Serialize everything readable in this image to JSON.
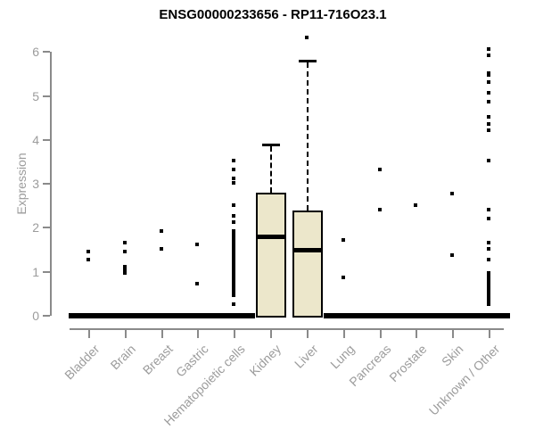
{
  "chart_data": {
    "type": "boxplot",
    "title": "ENSG00000233656 - RP11-716O23.1",
    "ylabel": "Expression",
    "xlabel": "",
    "ylim": [
      0,
      6
    ],
    "ytick_step": 1,
    "grid": false,
    "legend": "none",
    "categories": [
      "Bladder",
      "Brain",
      "Breast",
      "Gastric",
      "Hematopoietic cells",
      "Kidney",
      "Liver",
      "Lung",
      "Pancreas",
      "Prostate",
      "Skin",
      "Unknown / Other"
    ],
    "boxes": [
      {
        "category": "Bladder",
        "q1": 0,
        "median": 0,
        "q3": 0,
        "whisker_low": 0,
        "whisker_high": 0,
        "outliers": [
          1.45,
          1.25
        ]
      },
      {
        "category": "Brain",
        "q1": 0,
        "median": 0,
        "q3": 0,
        "whisker_low": 0,
        "whisker_high": 0,
        "outliers": [
          1.65,
          1.45,
          1.1,
          1.05,
          1.0,
          0.95
        ]
      },
      {
        "category": "Breast",
        "q1": 0,
        "median": 0,
        "q3": 0,
        "whisker_low": 0,
        "whisker_high": 0,
        "outliers": [
          1.9,
          1.5
        ]
      },
      {
        "category": "Gastric",
        "q1": 0,
        "median": 0,
        "q3": 0,
        "whisker_low": 0,
        "whisker_high": 0,
        "outliers": [
          1.6,
          0.7
        ]
      },
      {
        "category": "Hematopoietic cells",
        "q1": 0,
        "median": 0,
        "q3": 0,
        "whisker_low": 0,
        "whisker_high": 0,
        "outliers": [
          3.5,
          3.3,
          3.1,
          3.0,
          2.5,
          2.25,
          2.1,
          1.9,
          1.85,
          1.8,
          1.75,
          1.7,
          1.65,
          1.6,
          1.55,
          1.5,
          1.45,
          1.4,
          1.35,
          1.3,
          1.25,
          1.2,
          1.15,
          1.1,
          1.05,
          1.0,
          0.95,
          0.9,
          0.85,
          0.8,
          0.75,
          0.7,
          0.65,
          0.6,
          0.55,
          0.5,
          0.45,
          0.25
        ]
      },
      {
        "category": "Kidney",
        "q1": 0,
        "median": 1.8,
        "q3": 2.8,
        "whisker_low": 0,
        "whisker_high": 3.9,
        "outliers": []
      },
      {
        "category": "Liver",
        "q1": 0,
        "median": 1.5,
        "q3": 2.4,
        "whisker_low": 0,
        "whisker_high": 5.8,
        "outliers": [
          6.3
        ]
      },
      {
        "category": "Lung",
        "q1": 0,
        "median": 0,
        "q3": 0,
        "whisker_low": 0,
        "whisker_high": 0,
        "outliers": [
          1.7,
          0.85
        ]
      },
      {
        "category": "Pancreas",
        "q1": 0,
        "median": 0,
        "q3": 0,
        "whisker_low": 0,
        "whisker_high": 0,
        "outliers": [
          3.3,
          2.4
        ]
      },
      {
        "category": "Prostate",
        "q1": 0,
        "median": 0,
        "q3": 0,
        "whisker_low": 0,
        "whisker_high": 0,
        "outliers": [
          2.5
        ]
      },
      {
        "category": "Skin",
        "q1": 0,
        "median": 0,
        "q3": 0,
        "whisker_low": 0,
        "whisker_high": 0,
        "outliers": [
          2.75,
          1.35
        ]
      },
      {
        "category": "Unknown / Other",
        "q1": 0,
        "median": 0,
        "q3": 0,
        "whisker_low": 0,
        "whisker_high": 0,
        "outliers": [
          6.05,
          5.9,
          5.5,
          5.45,
          5.3,
          5.05,
          4.85,
          4.5,
          4.35,
          4.2,
          3.5,
          2.4,
          2.2,
          1.65,
          1.5,
          1.25,
          0.95,
          0.9,
          0.85,
          0.8,
          0.75,
          0.7,
          0.65,
          0.6,
          0.55,
          0.5,
          0.45,
          0.4,
          0.35,
          0.3,
          0.25
        ]
      }
    ],
    "style": {
      "box_fill": "#ECE7CB",
      "box_border": "#000000",
      "median_color": "#000000",
      "whisker_color": "#000000",
      "outlier_color": "#000000",
      "axis_color": "#8a8a8a",
      "tick_label_color": "#9c9c9c",
      "title_color": "#000000",
      "background": "#ffffff"
    }
  }
}
